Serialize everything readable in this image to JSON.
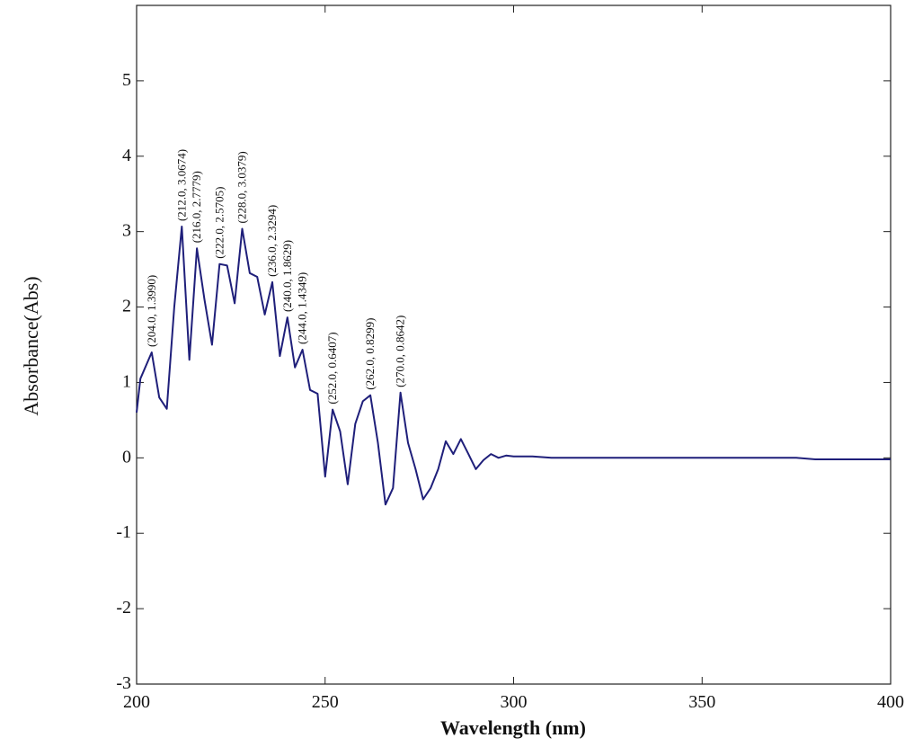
{
  "chart_data": {
    "type": "line",
    "title": "",
    "xlabel": "Wavelength (nm)",
    "ylabel": "Absorbance(Abs)",
    "xlim": [
      200,
      400
    ],
    "ylim": [
      -3,
      6
    ],
    "x_ticks": [
      200,
      250,
      300,
      350,
      400
    ],
    "y_ticks": [
      -3,
      -2,
      -1,
      0,
      1,
      2,
      3,
      4,
      5
    ],
    "grid": false,
    "legend": "none",
    "color": "#1f1f7a",
    "series": [
      {
        "x": [
          200,
          201,
          204,
          206,
          208,
          210,
          212,
          214,
          216,
          218,
          220,
          222,
          224,
          226,
          228,
          230,
          232,
          234,
          236,
          238,
          240,
          242,
          244,
          246,
          248,
          250,
          252,
          254,
          256,
          258,
          260,
          262,
          264,
          266,
          268,
          270,
          272,
          274,
          276,
          278,
          280,
          282,
          284,
          286,
          288,
          290,
          292,
          294,
          296,
          298,
          300,
          305,
          310,
          320,
          350,
          375,
          380,
          400
        ],
        "y": [
          0.6,
          1.05,
          1.399,
          0.8,
          0.65,
          2.0,
          3.0674,
          1.3,
          2.7779,
          2.1,
          1.5,
          2.5705,
          2.55,
          2.05,
          3.0379,
          2.45,
          2.4,
          1.9,
          2.3294,
          1.35,
          1.8629,
          1.2,
          1.4349,
          0.9,
          0.85,
          -0.25,
          0.6407,
          0.35,
          -0.35,
          0.45,
          0.75,
          0.8299,
          0.2,
          -0.62,
          -0.4,
          0.8642,
          0.2,
          -0.15,
          -0.55,
          -0.4,
          -0.15,
          0.22,
          0.05,
          0.25,
          0.05,
          -0.15,
          -0.03,
          0.05,
          0.0,
          0.03,
          0.02,
          0.02,
          0.0,
          0.0,
          0.0,
          0.0,
          -0.02,
          -0.02
        ]
      }
    ],
    "annotations": [
      {
        "text": "(204.0, 1.3990)",
        "x": 204.0,
        "y": 1.399
      },
      {
        "text": "(212.0, 3.0674)",
        "x": 212.0,
        "y": 3.0674
      },
      {
        "text": "(216.0, 2.7779)",
        "x": 216.0,
        "y": 2.7779
      },
      {
        "text": "(222.0, 2.5705)",
        "x": 222.0,
        "y": 2.5705
      },
      {
        "text": "(228.0, 3.0379)",
        "x": 228.0,
        "y": 3.0379
      },
      {
        "text": "(236.0, 2.3294)",
        "x": 236.0,
        "y": 2.3294
      },
      {
        "text": "(240.0, 1.8629)",
        "x": 240.0,
        "y": 1.8629
      },
      {
        "text": "(244.0, 1.4349)",
        "x": 244.0,
        "y": 1.4349
      },
      {
        "text": "(252.0, 0.6407)",
        "x": 252.0,
        "y": 0.6407
      },
      {
        "text": "(262.0, 0.8299)",
        "x": 262.0,
        "y": 0.8299
      },
      {
        "text": "(270.0, 0.8642)",
        "x": 270.0,
        "y": 0.8642
      }
    ]
  }
}
